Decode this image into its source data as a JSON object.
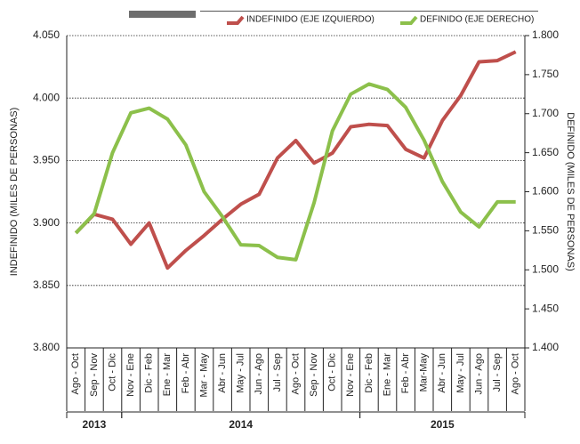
{
  "chart_data": {
    "type": "line",
    "categories": [
      "Ago - Oct",
      "Sep - Nov",
      "Oct - Dic",
      "Nov - Ene",
      "Dic - Feb",
      "Ene - Mar",
      "Feb - Abr",
      "Mar - May",
      "Abr - Jun",
      "May - Jul",
      "Jun - Ago",
      "Jul - Sep",
      "Ago - Oct",
      "Sep - Nov",
      "Oct - Dic",
      "Nov - Ene",
      "Dic - Feb",
      "Ene - Mar",
      "Feb - Abr",
      "Mar-May",
      "Abr - Jun",
      "May - Jul",
      "Jun - Ago",
      "Jul - Sep",
      "Ago - Oct"
    ],
    "years": [
      {
        "label": "2013",
        "start": 0,
        "end": 2
      },
      {
        "label": "2014",
        "start": 3,
        "end": 15
      },
      {
        "label": "2015",
        "start": 16,
        "end": 24
      }
    ],
    "y_label": "INDEFINIDO (MILES DE PERSONAS)",
    "y2_label": "DEFINIDO (MILES DE PERSONAS)",
    "ylim": [
      3800,
      4050
    ],
    "yticks": [
      {
        "value": 3800,
        "label": "3.800"
      },
      {
        "value": 3850,
        "label": "3.850"
      },
      {
        "value": 3900,
        "label": "3.900"
      },
      {
        "value": 3950,
        "label": "3.950"
      },
      {
        "value": 4000,
        "label": "4.000"
      },
      {
        "value": 4050,
        "label": "4.050"
      }
    ],
    "y2lim": [
      1400,
      1800
    ],
    "y2ticks": [
      {
        "value": 1400,
        "label": "1.400"
      },
      {
        "value": 1450,
        "label": "1.450"
      },
      {
        "value": 1500,
        "label": "1.500"
      },
      {
        "value": 1550,
        "label": "1.550"
      },
      {
        "value": 1600,
        "label": "1.600"
      },
      {
        "value": 1650,
        "label": "1.650"
      },
      {
        "value": 1700,
        "label": "1.700"
      },
      {
        "value": 1750,
        "label": "1.750"
      },
      {
        "value": 1800,
        "label": "1.800"
      }
    ],
    "grid": true,
    "series": [
      {
        "name": "INDEFINIDO (EJE IZQUIERDO)",
        "color": "#bf4f4c",
        "values": [
          3892,
          3907,
          3903,
          3883,
          3900,
          3864,
          3878,
          3890,
          3903,
          3915,
          3923,
          3952,
          3966,
          3948,
          3956,
          3977,
          3979,
          3978,
          3959,
          3952,
          3982,
          4002,
          4029,
          4030,
          4037
        ]
      },
      {
        "name": "DEFINIDO (EJE DERECHO)",
        "color": "#8cc04b",
        "axis": "y2",
        "values": [
          1547,
          1572,
          1650,
          1701,
          1707,
          1693,
          1660,
          1600,
          1568,
          1532,
          1531,
          1516,
          1513,
          1586,
          1678,
          1725,
          1738,
          1731,
          1708,
          1666,
          1613,
          1574,
          1555,
          1587,
          1587
        ]
      }
    ]
  }
}
